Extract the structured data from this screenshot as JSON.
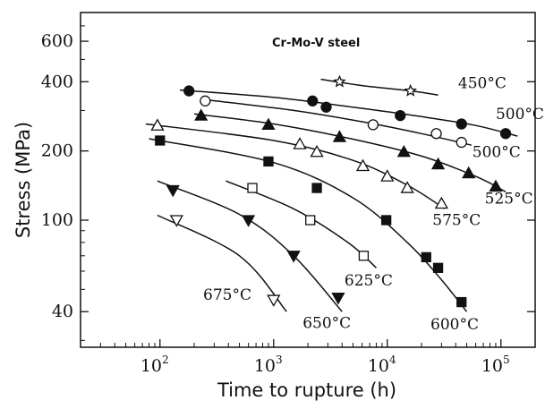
{
  "chart_data": {
    "type": "scatter",
    "title": "Cr-Mo-V steel",
    "xlabel": "Time to rupture (h)",
    "ylabel": "Stress (MPa)",
    "x_scale": "log",
    "y_scale": "log",
    "xlim": [
      20,
      200000
    ],
    "ylim": [
      28,
      800
    ],
    "x_ticks": [
      {
        "value": 100,
        "base": "10",
        "exp": "2"
      },
      {
        "value": 1000,
        "base": "10",
        "exp": "3"
      },
      {
        "value": 10000,
        "base": "10",
        "exp": "4"
      },
      {
        "value": 100000,
        "base": "10",
        "exp": "5"
      }
    ],
    "y_ticks": [
      {
        "value": 40,
        "label": "40"
      },
      {
        "value": 100,
        "label": "100"
      },
      {
        "value": 200,
        "label": "200"
      },
      {
        "value": 400,
        "label": "400"
      },
      {
        "value": 600,
        "label": "600"
      }
    ],
    "grid": false,
    "series": [
      {
        "name": "450°C",
        "marker": "star",
        "points": [
          [
            3800,
            400
          ],
          [
            16000,
            365
          ]
        ],
        "curve": [
          [
            2600,
            410
          ],
          [
            6000,
            385
          ],
          [
            16000,
            365
          ],
          [
            28000,
            350
          ]
        ],
        "label_anchor": [
          42000,
          375
        ]
      },
      {
        "name": "500°C",
        "marker": "circle-filled",
        "points": [
          [
            180,
            365
          ],
          [
            2200,
            330
          ],
          [
            2900,
            310
          ],
          [
            13000,
            285
          ],
          [
            45000,
            262
          ],
          [
            110000,
            238
          ]
        ],
        "curve": [
          [
            150,
            368
          ],
          [
            1000,
            342
          ],
          [
            5000,
            310
          ],
          [
            20000,
            282
          ],
          [
            60000,
            258
          ],
          [
            140000,
            232
          ]
        ],
        "label_anchor": [
          90000,
          275
        ]
      },
      {
        "name": "500°C",
        "marker": "circle-open",
        "points": [
          [
            250,
            330
          ],
          [
            7500,
            260
          ],
          [
            27000,
            238
          ],
          [
            45000,
            218
          ]
        ],
        "curve": [
          [
            240,
            335
          ],
          [
            1500,
            300
          ],
          [
            6000,
            268
          ],
          [
            20000,
            238
          ],
          [
            55000,
            212
          ]
        ],
        "label_anchor": [
          56000,
          188
        ]
      },
      {
        "name": "525°C",
        "marker": "triangle-filled",
        "points": [
          [
            230,
            285
          ],
          [
            900,
            260
          ],
          [
            3800,
            230
          ],
          [
            14000,
            198
          ],
          [
            28000,
            175
          ],
          [
            52000,
            160
          ],
          [
            90000,
            140
          ]
        ],
        "curve": [
          [
            200,
            290
          ],
          [
            1000,
            262
          ],
          [
            5000,
            225
          ],
          [
            20000,
            190
          ],
          [
            60000,
            155
          ],
          [
            110000,
            133
          ]
        ],
        "label_anchor": [
          72000,
          118
        ]
      },
      {
        "name": "575°C",
        "marker": "triangle-open",
        "points": [
          [
            95,
            258
          ],
          [
            1700,
            214
          ],
          [
            2400,
            198
          ],
          [
            6100,
            172
          ],
          [
            10000,
            155
          ],
          [
            15000,
            138
          ],
          [
            30000,
            118
          ]
        ],
        "curve": [
          [
            75,
            262
          ],
          [
            1000,
            222
          ],
          [
            5000,
            182
          ],
          [
            15000,
            142
          ],
          [
            32000,
            112
          ]
        ],
        "label_anchor": [
          25000,
          95
        ]
      },
      {
        "name": "600°C",
        "marker": "square-filled",
        "points": [
          [
            100,
            222
          ],
          [
            900,
            180
          ],
          [
            2400,
            138
          ],
          [
            9800,
            100
          ],
          [
            22000,
            69
          ],
          [
            28000,
            62
          ],
          [
            45000,
            44
          ]
        ],
        "curve": [
          [
            80,
            226
          ],
          [
            1000,
            178
          ],
          [
            5000,
            125
          ],
          [
            15000,
            80
          ],
          [
            30000,
            55
          ],
          [
            50000,
            40
          ]
        ],
        "label_anchor": [
          24000,
          33.5
        ]
      },
      {
        "name": "625°C",
        "marker": "square-open",
        "points": [
          [
            650,
            138
          ],
          [
            2100,
            100
          ],
          [
            6200,
            70
          ]
        ],
        "curve": [
          [
            380,
            148
          ],
          [
            1500,
            112
          ],
          [
            4500,
            80
          ],
          [
            8000,
            62
          ]
        ],
        "label_anchor": [
          4200,
          52
        ]
      },
      {
        "name": "650°C",
        "marker": "triangle-down-filled",
        "points": [
          [
            130,
            135
          ],
          [
            600,
            100
          ],
          [
            1500,
            70
          ],
          [
            3700,
            46
          ]
        ],
        "curve": [
          [
            95,
            148
          ],
          [
            500,
            106
          ],
          [
            1500,
            70
          ],
          [
            4000,
            40
          ]
        ],
        "label_anchor": [
          1800,
          34
        ]
      },
      {
        "name": "675°C",
        "marker": "triangle-down-open",
        "points": [
          [
            140,
            100
          ],
          [
            1000,
            45
          ]
        ],
        "curve": [
          [
            95,
            105
          ],
          [
            500,
            70
          ],
          [
            1300,
            40
          ]
        ],
        "label_anchor": [
          240,
          45
        ]
      }
    ]
  }
}
